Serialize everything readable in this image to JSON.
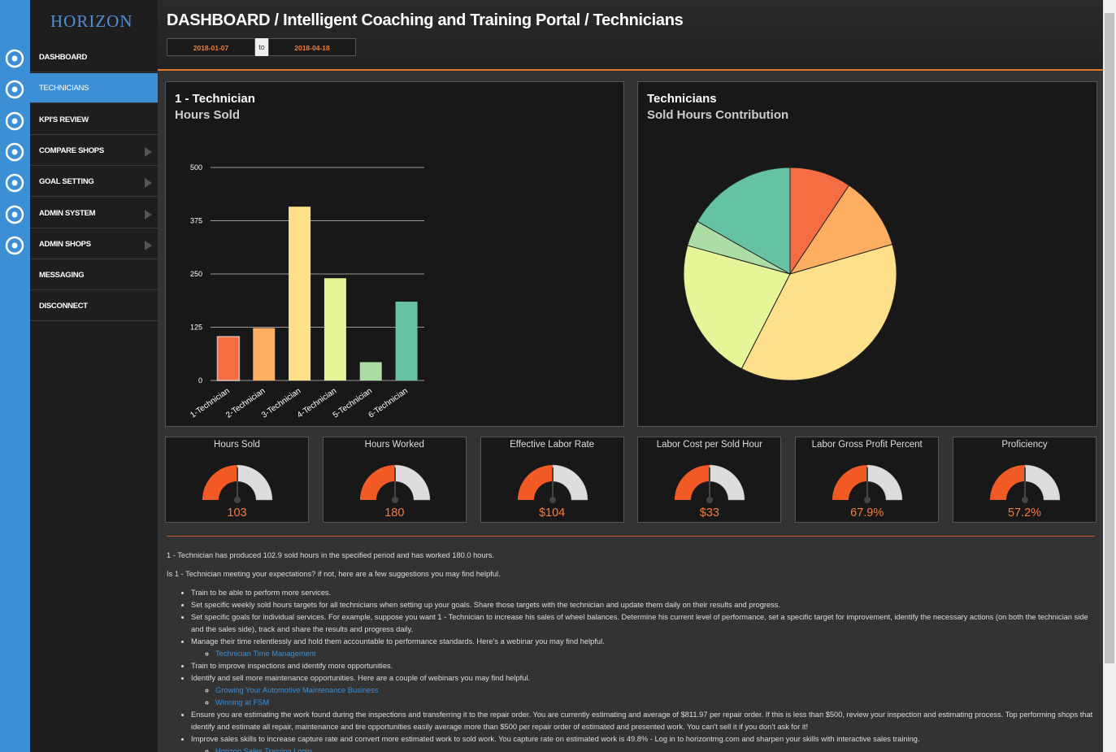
{
  "sidebar": {
    "logo": "HORIZON",
    "items": [
      {
        "label": "DASHBOARD"
      },
      {
        "label": "TECHNICIANS"
      },
      {
        "label": "KPI'S REVIEW"
      },
      {
        "label": "COMPARE SHOPS"
      },
      {
        "label": "GOAL SETTING"
      },
      {
        "label": "ADMIN SYSTEM"
      },
      {
        "label": "ADMIN SHOPS"
      },
      {
        "label": "MESSAGING"
      },
      {
        "label": "DISCONNECT"
      }
    ]
  },
  "header": {
    "title": "DASHBOARD / Intelligent Coaching and Training Portal / Technicians",
    "date_from": "2018-01-07",
    "date_sep": "to",
    "date_to": "2018-04-18"
  },
  "chart_data": [
    {
      "type": "bar",
      "title": "1 - Technician",
      "subtitle": "Hours Sold",
      "categories": [
        "1-Technician",
        "2-Technician",
        "3-Technician",
        "4-Technician",
        "5-Technician",
        "6-Technician"
      ],
      "values": [
        103,
        123,
        408,
        240,
        43,
        185
      ],
      "colors": [
        "#f46d43",
        "#fdae61",
        "#fee08b",
        "#e6f598",
        "#abdda4",
        "#66c2a5"
      ],
      "ylim": [
        0,
        500
      ],
      "yticks": [
        0,
        125,
        250,
        375,
        500
      ],
      "grid": true
    },
    {
      "type": "pie",
      "title": "Technicians",
      "subtitle": "Sold Hours Contribution",
      "values": [
        103,
        123,
        408,
        240,
        43,
        185
      ],
      "colors": [
        "#f46d43",
        "#fdae61",
        "#fee08b",
        "#e6f598",
        "#abdda4",
        "#66c2a5"
      ]
    }
  ],
  "gauges": [
    {
      "label": "Hours Sold",
      "value": "103"
    },
    {
      "label": "Hours Worked",
      "value": "180"
    },
    {
      "label": "Effective Labor Rate",
      "value": "$104"
    },
    {
      "label": "Labor Cost per Sold Hour",
      "value": "$33"
    },
    {
      "label": "Labor Gross Profit Percent",
      "value": "67.9%"
    },
    {
      "label": "Proficiency",
      "value": "57.2%"
    }
  ],
  "advice": {
    "paragraphs": [
      "1 - Technician has produced 102.9 sold hours in the specified period and has worked 180.0 hours.",
      "Is 1 - Technician meeting your expectations? if not, here are a few suggestions you may find helpful."
    ],
    "items": [
      {
        "text": "Train to be able to perform more services.",
        "links": []
      },
      {
        "text": "Set specific weekly sold hours targets for all technicians when setting up your goals. Share those targets with the technician and update them daily on their results and progress.",
        "links": []
      },
      {
        "text": "Set specific goals for individual services. For example, suppose you want 1 - Technician to increase his sales of wheel balances. Determine his current level of performance, set a specific target for improvement, identify the necessary actions (on both the technician side and the sales side), track and share the results and progress daily.",
        "links": []
      },
      {
        "text": "Manage their time relentlessly and hold them accountable to performance standards. Here's a webinar you may find helpful.",
        "links": [
          "Technician Time Management"
        ]
      },
      {
        "text": "Train to improve inspections and identify more opportunities.",
        "links": []
      },
      {
        "text": "Identify and sell more maintenance opportunities. Here are a couple of webinars you may find helpful.",
        "links": [
          "Growing Your Automotive Maintenance Business",
          "Winning at FSM"
        ]
      },
      {
        "text": "Ensure you are estimating the work found during the inspections and transferring it to the repair order. You are currently estimating and average of $811.97 per repair order. If this is less than $500, review your inspection and estimating process. Top performing shops that identify and estimate all repair, maintenance and tire opportunities easily average more than $500 per repair order of estimated and presented work. You can't sell it if you don't ask for it!",
        "links": []
      },
      {
        "text": "Improve sales skills to increase capture rate and convert more estimated work to sold work. You capture rate on estimated work is 49.8% - Log in to horizontmg.com and sharpen your skills with interactive sales training.",
        "links": [
          "Horizon Sales Training Login"
        ]
      }
    ]
  }
}
